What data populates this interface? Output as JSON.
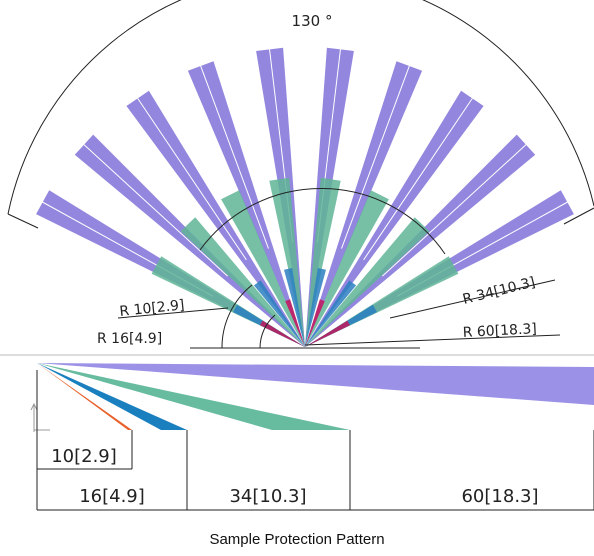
{
  "caption": "Sample Protection Pattern",
  "fan_view": {
    "angle_label": "130 °",
    "fan_angle_deg": 130,
    "radius_labels": [
      {
        "key": "r10",
        "text": "R 10[2.9]",
        "radius": 10
      },
      {
        "key": "r16",
        "text": "R 16[4.9]",
        "radius": 16
      },
      {
        "key": "r34",
        "text": "R 34[10.3]",
        "radius": 34
      },
      {
        "key": "r60",
        "text": "R 60[18.3]",
        "radius": 60
      }
    ],
    "fins": [
      {
        "name": "outer-fins",
        "radius": 60,
        "count": 10,
        "color": "#8c7fdc"
      },
      {
        "name": "middle-fins",
        "radius": 34,
        "count": 8,
        "color": "#5fb597"
      },
      {
        "name": "inner-fins",
        "radius": 16,
        "count": 6,
        "color": "#2a7fbf"
      },
      {
        "name": "core-fins",
        "radius": 10,
        "count": 4,
        "color": "#c2185b"
      }
    ]
  },
  "side_view": {
    "beams": [
      {
        "name": "beam-10",
        "length": 10,
        "color": "#e8602a"
      },
      {
        "name": "beam-16",
        "length": 16,
        "color": "#1a7fbf"
      },
      {
        "name": "beam-34",
        "length": 34,
        "color": "#67bb9f"
      },
      {
        "name": "beam-60",
        "length": 60,
        "color": "#9b91e6"
      }
    ],
    "dimensions": [
      {
        "key": "d10",
        "text": "10[2.9]"
      },
      {
        "key": "d16",
        "text": "16[4.9]"
      },
      {
        "key": "d34",
        "text": "34[10.3]"
      },
      {
        "key": "d60",
        "text": "60[18.3]"
      }
    ]
  }
}
